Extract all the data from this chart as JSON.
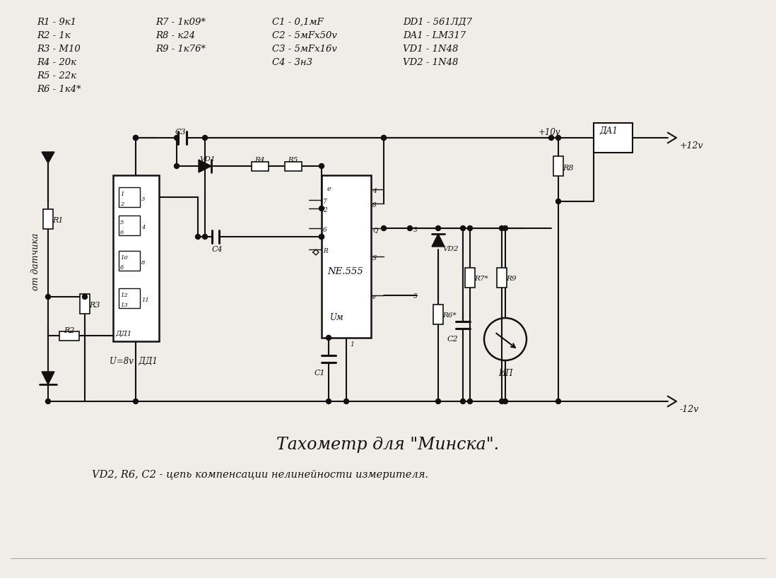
{
  "title": "Тахометр для \"Минска\".",
  "subtitle": "VD2, R6, C2 - цепь компенсации нелинейности измерителя.",
  "background_color": "#f0ede8",
  "line_color": "#111111",
  "text_color": "#111111",
  "parts_col1": [
    "R1 - 9к1",
    "R2 - 1к",
    "R3 - M10",
    "R4 - 20к",
    "R5 - 22к",
    "R6 - 1к4*"
  ],
  "parts_col2": [
    "R7 - 1к09*",
    "R8 - к24",
    "R9 - 1к76*"
  ],
  "parts_col3": [
    "C1 - 0,1мF",
    "C2 - 5мFx50v",
    "C3 - 5мFx16v",
    "C4 - 3н3"
  ],
  "parts_col4": [
    "DD1 - 561ЛД7",
    "DA1 - LM317",
    "VD1 - 1N48",
    "VD2 - 1N48"
  ]
}
